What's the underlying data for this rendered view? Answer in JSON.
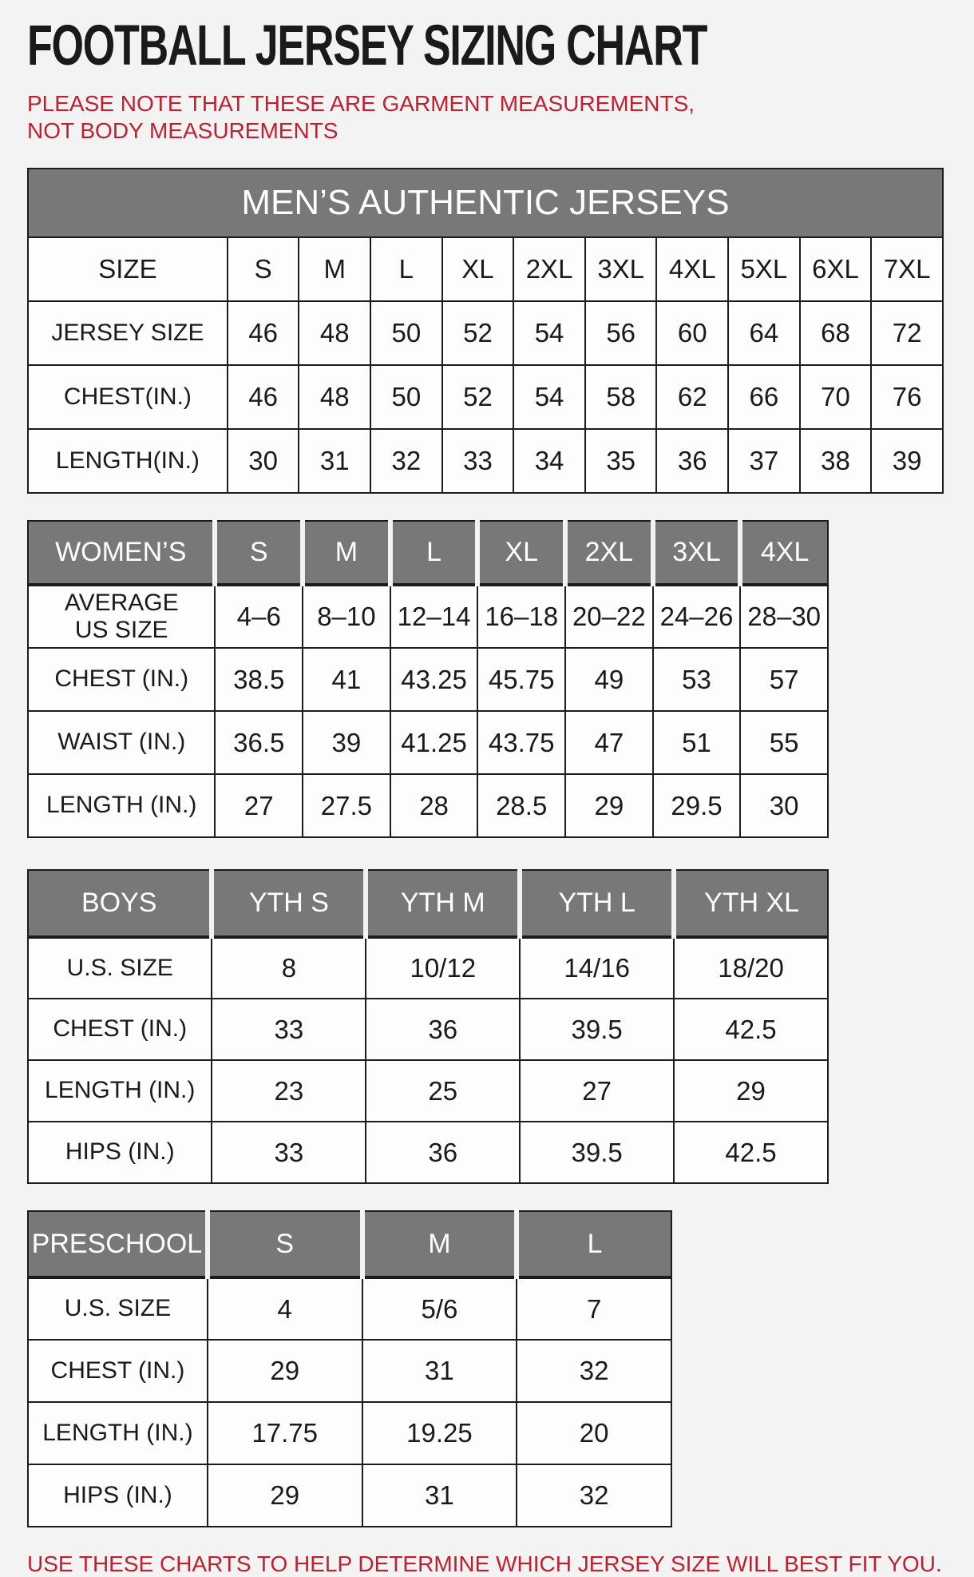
{
  "page": {
    "title": "FOOTBALL JERSEY SIZING CHART",
    "note": "PLEASE NOTE THAT THESE ARE GARMENT MEASUREMENTS, NOT BODY MEASUREMENTS",
    "footer": "USE THESE CHARTS TO HELP DETERMINE WHICH JERSEY SIZE WILL BEST FIT YOU."
  },
  "colors": {
    "header_gray": "#787878",
    "accent_red": "#c01f2f",
    "cell_white": "#fdfdfd",
    "border_black": "#1c1c1c"
  },
  "chart_data": [
    {
      "type": "table",
      "title": "MEN’S AUTHENTIC JERSEYS",
      "columns": [
        "SIZE",
        "S",
        "M",
        "L",
        "XL",
        "2XL",
        "3XL",
        "4XL",
        "5XL",
        "6XL",
        "7XL"
      ],
      "rows": [
        {
          "label": "JERSEY SIZE",
          "values": [
            "46",
            "48",
            "50",
            "52",
            "54",
            "56",
            "60",
            "64",
            "68",
            "72"
          ]
        },
        {
          "label": "CHEST(IN.)",
          "values": [
            "46",
            "48",
            "50",
            "52",
            "54",
            "58",
            "62",
            "66",
            "70",
            "76"
          ]
        },
        {
          "label": "LENGTH(IN.)",
          "values": [
            "30",
            "31",
            "32",
            "33",
            "34",
            "35",
            "36",
            "37",
            "38",
            "39"
          ]
        }
      ]
    },
    {
      "type": "table",
      "title": "WOMEN’S",
      "columns": [
        "WOMEN’S",
        "S",
        "M",
        "L",
        "XL",
        "2XL",
        "3XL",
        "4XL"
      ],
      "rows": [
        {
          "label": "AVERAGE\nUS SIZE",
          "values": [
            "4–6",
            "8–10",
            "12–14",
            "16–18",
            "20–22",
            "24–26",
            "28–30"
          ]
        },
        {
          "label": "CHEST (IN.)",
          "values": [
            "38.5",
            "41",
            "43.25",
            "45.75",
            "49",
            "53",
            "57"
          ]
        },
        {
          "label": "WAIST (IN.)",
          "values": [
            "36.5",
            "39",
            "41.25",
            "43.75",
            "47",
            "51",
            "55"
          ]
        },
        {
          "label": "LENGTH (IN.)",
          "values": [
            "27",
            "27.5",
            "28",
            "28.5",
            "29",
            "29.5",
            "30"
          ]
        }
      ]
    },
    {
      "type": "table",
      "title": "BOYS",
      "columns": [
        "BOYS",
        "YTH S",
        "YTH M",
        "YTH L",
        "YTH XL"
      ],
      "rows": [
        {
          "label": "U.S. SIZE",
          "values": [
            "8",
            "10/12",
            "14/16",
            "18/20"
          ]
        },
        {
          "label": "CHEST (IN.)",
          "values": [
            "33",
            "36",
            "39.5",
            "42.5"
          ]
        },
        {
          "label": "LENGTH (IN.)",
          "values": [
            "23",
            "25",
            "27",
            "29"
          ]
        },
        {
          "label": "HIPS (IN.)",
          "values": [
            "33",
            "36",
            "39.5",
            "42.5"
          ]
        }
      ]
    },
    {
      "type": "table",
      "title": "PRESCHOOL",
      "columns": [
        "PRESCHOOL",
        "S",
        "M",
        "L"
      ],
      "rows": [
        {
          "label": "U.S. SIZE",
          "values": [
            "4",
            "5/6",
            "7"
          ]
        },
        {
          "label": "CHEST (IN.)",
          "values": [
            "29",
            "31",
            "32"
          ]
        },
        {
          "label": "LENGTH (IN.)",
          "values": [
            "17.75",
            "19.25",
            "20"
          ]
        },
        {
          "label": "HIPS (IN.)",
          "values": [
            "29",
            "31",
            "32"
          ]
        }
      ]
    }
  ]
}
